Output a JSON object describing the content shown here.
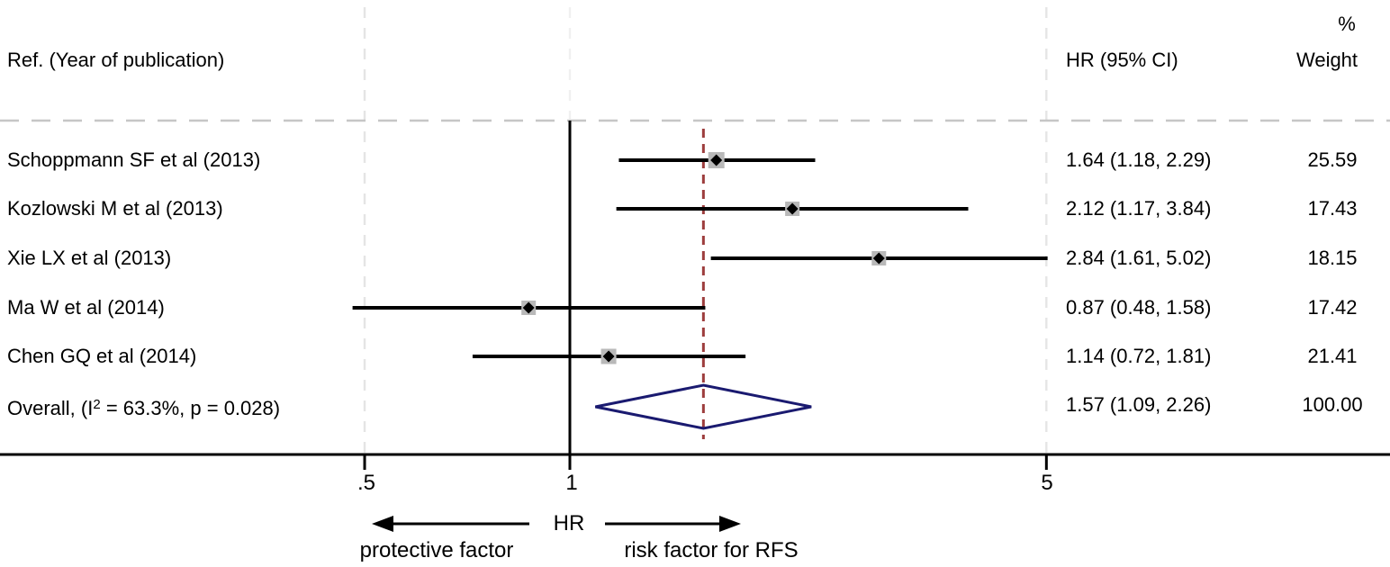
{
  "chart_data": {
    "type": "forest",
    "title_column": "Ref. (Year of publication)",
    "hr_column": "HR (95% CI)",
    "weight_column_top": "%",
    "weight_column": "Weight",
    "x_axis": {
      "scale": "log",
      "ticks": [
        0.5,
        1,
        5
      ],
      "tick_labels": [
        ".5",
        "1",
        "5"
      ],
      "null_line": 1,
      "xlim": [
        0.3,
        7.5
      ]
    },
    "studies": [
      {
        "label": "Schoppmann SF et al (2013)",
        "hr": 1.64,
        "ci_low": 1.18,
        "ci_high": 2.29,
        "hr_ci_text": "1.64 (1.18, 2.29)",
        "weight": 25.59,
        "weight_text": "25.59"
      },
      {
        "label": "Kozlowski M et al (2013)",
        "hr": 2.12,
        "ci_low": 1.17,
        "ci_high": 3.84,
        "hr_ci_text": "2.12 (1.17, 3.84)",
        "weight": 17.43,
        "weight_text": "17.43"
      },
      {
        "label": "Xie LX et al (2013)",
        "hr": 2.84,
        "ci_low": 1.61,
        "ci_high": 5.02,
        "hr_ci_text": "2.84 (1.61, 5.02)",
        "weight": 18.15,
        "weight_text": "18.15"
      },
      {
        "label": "Ma W et al (2014)",
        "hr": 0.87,
        "ci_low": 0.48,
        "ci_high": 1.58,
        "hr_ci_text": "0.87 (0.48, 1.58)",
        "weight": 17.42,
        "weight_text": "17.42"
      },
      {
        "label": "Chen GQ et al (2014)",
        "hr": 1.14,
        "ci_low": 0.72,
        "ci_high": 1.81,
        "hr_ci_text": "1.14 (0.72, 1.81)",
        "weight": 21.41,
        "weight_text": "21.41"
      }
    ],
    "overall": {
      "label_pre": "Overall,  (I",
      "label_sup": "2",
      "label_post": " = 63.3%, p = 0.028)",
      "hr": 1.57,
      "ci_low": 1.09,
      "ci_high": 2.26,
      "hr_ci_text": "1.57 (1.09, 2.26)",
      "weight_text": "100.00"
    },
    "axis_annotations": {
      "axis_label": "HR",
      "left_label": "protective factor",
      "right_label": "risk factor for RFS"
    }
  },
  "colors": {
    "text": "#000000",
    "ci_line": "#000000",
    "marker_box": "#b9b9b9",
    "marker_point": "#000000",
    "overall_diamond": "#1a1a70",
    "overall_ref_line": "#9d3d3d",
    "grid_line": "#e5e5e5",
    "header_rule": "#c6c6c6",
    "axis_line": "#000000"
  }
}
